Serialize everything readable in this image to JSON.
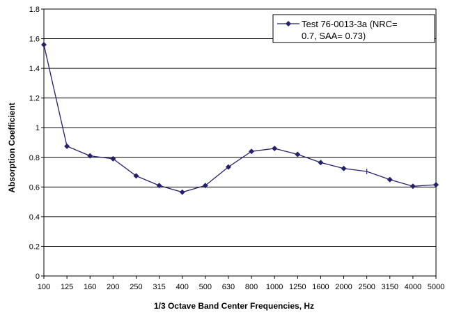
{
  "chart_data": {
    "type": "line",
    "title": "",
    "xlabel": "1/3 Octave Band Center Frequencies, Hz",
    "ylabel": "Absorption Coefficient",
    "ylim": [
      0,
      1.8
    ],
    "yticks": [
      "0",
      "0.2",
      "0.4",
      "0.6",
      "0.8",
      "1",
      "1.2",
      "1.4",
      "1.6",
      "1.8"
    ],
    "categories": [
      "100",
      "125",
      "160",
      "200",
      "250",
      "315",
      "400",
      "500",
      "630",
      "800",
      "1000",
      "1250",
      "1600",
      "2000",
      "2500",
      "3150",
      "4000",
      "5000"
    ],
    "grid": true,
    "legend_position": "top-right",
    "series": [
      {
        "name_lines": [
          "Test 76-0013-3a (NRC=",
          "0.7, SAA= 0.73)"
        ],
        "color": "#24206a",
        "marker": "diamond",
        "values": [
          1.56,
          0.875,
          0.81,
          0.79,
          0.675,
          0.61,
          0.565,
          0.61,
          0.735,
          0.84,
          0.86,
          0.82,
          0.765,
          0.725,
          0.705,
          0.65,
          0.605,
          0.615
        ],
        "values_without_marker": [
          "2500"
        ]
      }
    ]
  }
}
